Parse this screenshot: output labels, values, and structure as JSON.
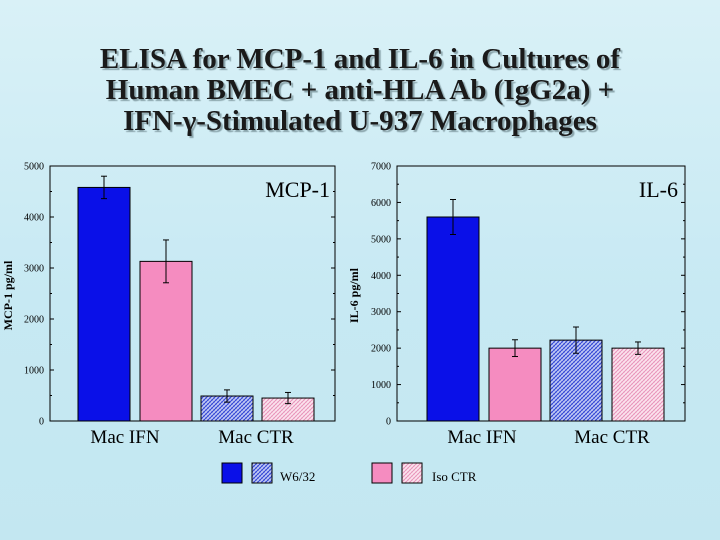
{
  "title": {
    "lines": [
      "ELISA for MCP-1 and IL-6 in Cultures of",
      "Human BMEC + anti-HLA Ab (IgG2a) +",
      "IFN-γ-Stimulated U-937 Macrophages"
    ]
  },
  "colors": {
    "W6/32 solid": "#0a10e8",
    "W6/32 hatched": "#4a55d8",
    "Iso CTR solid": "#f58cc0",
    "Iso CTR hatched": "#f4b6d2"
  },
  "legend": [
    {
      "label": "W6/32",
      "swatches": [
        "solid-blue",
        "hatched-blue"
      ]
    },
    {
      "label": "Iso CTR",
      "swatches": [
        "solid-pink",
        "hatched-pink"
      ]
    }
  ],
  "chart_data": [
    {
      "type": "bar",
      "label": "MCP-1",
      "ylabel": "MCP-1 pg/ml",
      "ylim": [
        0,
        5000
      ],
      "yticks": [
        "0",
        "1000",
        "2000",
        "3000",
        "4000",
        "5000"
      ],
      "categories": [
        "Mac IFN",
        "Mac CTR"
      ],
      "bars": [
        {
          "category": "Mac IFN",
          "series": "W6/32",
          "value": 4580,
          "error": 220,
          "fill": "solid-blue"
        },
        {
          "category": "Mac IFN",
          "series": "Iso CTR",
          "value": 3130,
          "error": 420,
          "fill": "solid-pink"
        },
        {
          "category": "Mac CTR",
          "series": "W6/32",
          "value": 490,
          "error": 120,
          "fill": "hatched-blue"
        },
        {
          "category": "Mac CTR",
          "series": "Iso CTR",
          "value": 450,
          "error": 110,
          "fill": "hatched-pink"
        }
      ]
    },
    {
      "type": "bar",
      "label": "IL-6",
      "ylabel": "IL-6 pg/ml",
      "ylim": [
        0,
        7000
      ],
      "yticks": [
        "0",
        "1000",
        "2000",
        "3000",
        "4000",
        "5000",
        "6000",
        "7000"
      ],
      "categories": [
        "Mac IFN",
        "Mac CTR"
      ],
      "bars": [
        {
          "category": "Mac IFN",
          "series": "W6/32",
          "value": 5600,
          "error": 480,
          "fill": "solid-blue"
        },
        {
          "category": "Mac IFN",
          "series": "Iso CTR",
          "value": 2000,
          "error": 230,
          "fill": "solid-pink"
        },
        {
          "category": "Mac CTR",
          "series": "W6/32",
          "value": 2220,
          "error": 360,
          "fill": "hatched-blue"
        },
        {
          "category": "Mac CTR",
          "series": "Iso CTR",
          "value": 2000,
          "error": 170,
          "fill": "hatched-pink"
        }
      ]
    }
  ]
}
